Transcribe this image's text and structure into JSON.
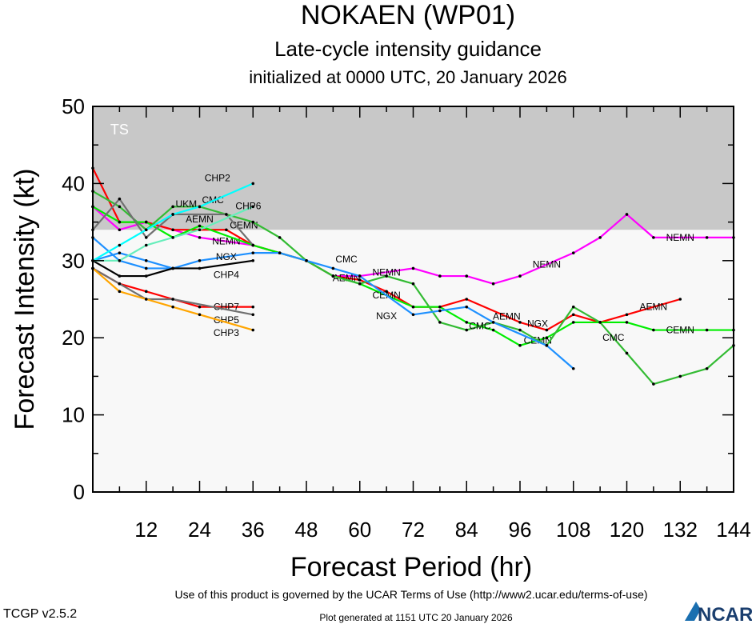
{
  "header": {
    "title": "NOKAEN (WP01)",
    "subtitle": "Late-cycle intensity guidance",
    "init": "initialized at 0000 UTC, 20 January 2026"
  },
  "footer": {
    "version": "TCGP v2.5.2",
    "terms": "Use of this product is governed by the UCAR Terms of Use (http://www2.ucar.edu/terms-of-use)",
    "generated": "Plot generated at 1151 UTC   20 January 2026",
    "logo": "NCAR"
  },
  "chart_data": {
    "type": "line",
    "xlabel": "Forecast Period (hr)",
    "ylabel": "Forecast Intensity (kt)",
    "xlim": [
      0,
      144
    ],
    "ylim": [
      0,
      50
    ],
    "xticks": [
      12,
      24,
      36,
      48,
      60,
      72,
      84,
      96,
      108,
      120,
      132,
      144
    ],
    "yticks": [
      0,
      10,
      20,
      30,
      40,
      50
    ],
    "bands": [
      {
        "label": "TS",
        "from": 34,
        "to": 50,
        "color": "#c8c8c8"
      }
    ],
    "background": "#f8f8f8",
    "grid": false,
    "series": [
      {
        "name": "NEMN",
        "color": "#ff00ff",
        "labels_at": [
          30,
          66,
          102,
          132
        ],
        "x": [
          0,
          6,
          12,
          18,
          24,
          36,
          42,
          48,
          54,
          60,
          72,
          78,
          84,
          90,
          96,
          108,
          114,
          120,
          126,
          138,
          144
        ],
        "y": [
          37,
          34,
          35,
          34,
          33,
          32,
          31,
          30,
          28,
          28,
          29,
          28,
          28,
          27,
          28,
          31,
          33,
          36,
          33,
          33,
          33
        ]
      },
      {
        "name": "AEMN",
        "color": "#ff0000",
        "labels_at": [
          24,
          57,
          93,
          126
        ],
        "x": [
          0,
          6,
          12,
          18,
          30,
          36,
          42,
          48,
          54,
          60,
          66,
          72,
          78,
          84,
          96,
          102,
          108,
          114,
          120,
          132
        ],
        "y": [
          42,
          35,
          35,
          34,
          34,
          32,
          31,
          30,
          28,
          27.5,
          26,
          24,
          24,
          25,
          22,
          21,
          23,
          22,
          23,
          25
        ]
      },
      {
        "name": "CEMN",
        "color": "#00ee00",
        "labels_at": [
          30,
          66,
          100,
          132
        ],
        "x": [
          0,
          6,
          12,
          18,
          24,
          36,
          42,
          48,
          54,
          60,
          72,
          78,
          84,
          90,
          96,
          102,
          108,
          114,
          120,
          126,
          138,
          144
        ],
        "y": [
          37,
          35,
          35,
          33,
          34.5,
          32,
          31,
          30,
          28,
          27,
          24,
          24,
          22,
          21,
          19,
          20,
          22,
          22,
          22,
          21,
          21,
          21
        ]
      },
      {
        "name": "CMC",
        "color": "#33bb33",
        "labels_at": [
          27,
          57,
          87,
          117
        ],
        "x": [
          0,
          6,
          12,
          18,
          24,
          36,
          42,
          48,
          54,
          60,
          66,
          72,
          78,
          84,
          90,
          96,
          102,
          108,
          114,
          120,
          126,
          132,
          138,
          144
        ],
        "y": [
          39,
          37,
          34,
          37,
          37,
          35,
          33,
          30,
          28,
          27,
          28,
          27,
          22,
          21,
          22,
          21,
          19,
          24,
          22,
          18,
          14,
          15,
          16,
          19
        ]
      },
      {
        "name": "NGX",
        "color": "#1e90ff",
        "labels_at": [
          30,
          66,
          96
        ],
        "x": [
          0,
          6,
          12,
          18,
          24,
          36,
          42,
          48,
          54,
          60,
          72,
          78,
          84,
          90,
          102,
          108
        ],
        "y": [
          30,
          31,
          30,
          29,
          30,
          31,
          31,
          30,
          29,
          28,
          23,
          23.5,
          24,
          22,
          19,
          16
        ]
      },
      {
        "name": "",
        "color": "#1e90ff",
        "labels_at": [],
        "x": [
          0,
          6,
          12,
          18
        ],
        "y": [
          33,
          30,
          29,
          29
        ]
      },
      {
        "name": "UKM",
        "color": "#707070",
        "labels_at": [
          21
        ],
        "x": [
          0,
          6,
          12,
          18,
          30,
          36
        ],
        "y": [
          34,
          38,
          33,
          36,
          36,
          32
        ]
      },
      {
        "name": "CHP4",
        "color": "#000000",
        "labels_at": [
          30
        ],
        "x": [
          0,
          6,
          12,
          18,
          24,
          36
        ],
        "y": [
          30,
          28,
          28,
          29,
          29,
          30
        ]
      },
      {
        "name": "CHP2",
        "color": "#00ffff",
        "labels_at": [
          28
        ],
        "x": [
          0,
          6,
          12,
          18,
          24,
          36
        ],
        "y": [
          30,
          32,
          34,
          36,
          37,
          40
        ]
      },
      {
        "name": "CHP6",
        "color": "#66eebb",
        "labels_at": [
          31
        ],
        "x": [
          0,
          6,
          12,
          18,
          24,
          36
        ],
        "y": [
          30,
          30,
          32,
          33,
          34,
          37
        ]
      },
      {
        "name": "CHP7",
        "color": "#ff0000",
        "labels_at": [
          30
        ],
        "x": [
          0,
          6,
          12,
          18,
          24,
          36
        ],
        "y": [
          29,
          27,
          26,
          25,
          24,
          24
        ]
      },
      {
        "name": "CHP5",
        "color": "#707070",
        "labels_at": [
          30
        ],
        "x": [
          0,
          6,
          12,
          18,
          36
        ],
        "y": [
          29,
          27,
          25,
          25,
          23
        ]
      },
      {
        "name": "CHP3",
        "color": "#ffa500",
        "labels_at": [
          30
        ],
        "x": [
          0,
          6,
          12,
          18,
          24,
          36
        ],
        "y": [
          29,
          26,
          25,
          24,
          23,
          21
        ]
      }
    ]
  }
}
